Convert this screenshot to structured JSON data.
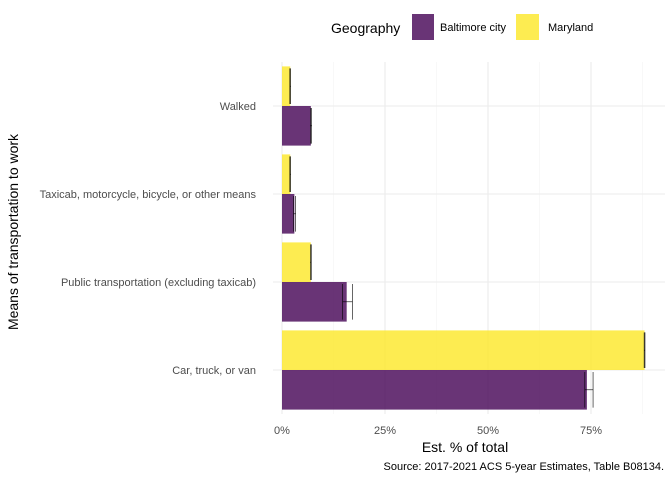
{
  "chart_data": {
    "type": "bar",
    "orientation": "horizontal",
    "xlabel": "Est. % of total",
    "ylabel": "Means of transportation to work",
    "caption": "Source: 2017-2021 ACS 5-year Estimates, Table B08134.",
    "xlim": [
      0,
      0.9
    ],
    "x_ticks": [
      0,
      0.25,
      0.5,
      0.75
    ],
    "x_tick_labels": [
      "0%",
      "25%",
      "50%",
      "75%"
    ],
    "grid": true,
    "legend": {
      "title": "Geography",
      "position": "top"
    },
    "categories": [
      "Car, truck, or van",
      "Public transportation (excluding taxicab)",
      "Taxicab, motorcycle, bicycle, or other means",
      "Walked"
    ],
    "series": [
      {
        "name": "Baltimore city",
        "color": "#440154",
        "values": [
          0.74,
          0.157,
          0.03,
          0.07
        ],
        "error_low": [
          0.735,
          0.147,
          0.028,
          0.069
        ],
        "error_high": [
          0.755,
          0.171,
          0.033,
          0.072
        ]
      },
      {
        "name": "Maryland",
        "color": "#FDE725",
        "values": [
          0.88,
          0.07,
          0.02,
          0.02
        ],
        "error_low": [
          0.879,
          0.069,
          0.019,
          0.019
        ],
        "error_high": [
          0.881,
          0.071,
          0.021,
          0.021
        ]
      }
    ]
  }
}
